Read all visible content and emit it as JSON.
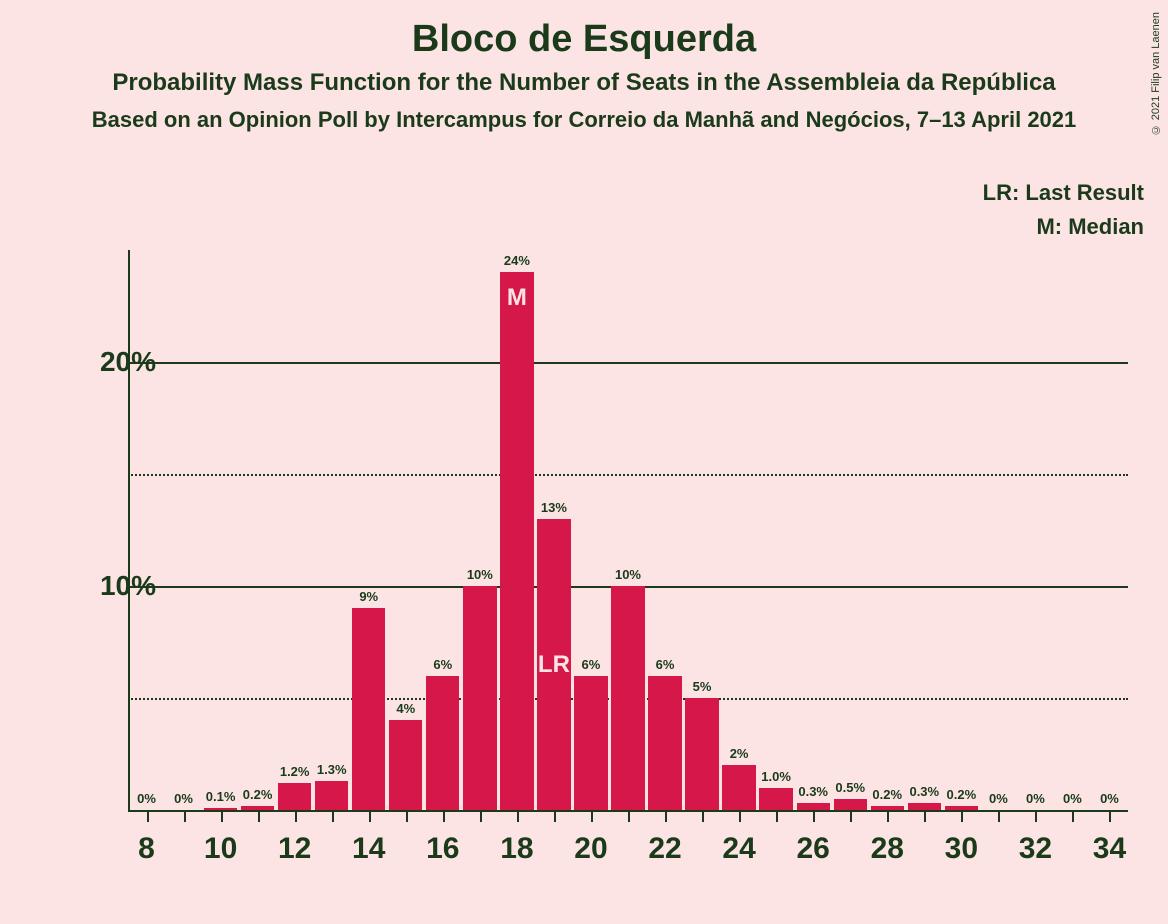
{
  "copyright": "© 2021 Filip van Laenen",
  "title": "Bloco de Esquerda",
  "subtitle": "Probability Mass Function for the Number of Seats in the Assembleia da República",
  "source": "Based on an Opinion Poll by Intercampus for Correio da Manhã and Negócios, 7–13 April 2021",
  "legend": {
    "lr": "LR: Last Result",
    "m": "M: Median"
  },
  "chart": {
    "type": "bar",
    "y_axis": {
      "major_ticks": [
        10,
        20
      ],
      "minor_ticks": [
        5,
        15
      ],
      "max": 25
    },
    "x_axis": {
      "start": 8,
      "end": 34,
      "tick_step": 2
    },
    "bar_color": "#d6174a",
    "background_color": "#fce4e4",
    "text_color": "#1a3a1a",
    "series": [
      {
        "x": 8,
        "value": 0,
        "label": "0%"
      },
      {
        "x": 9,
        "value": 0,
        "label": "0%"
      },
      {
        "x": 10,
        "value": 0.1,
        "label": "0.1%"
      },
      {
        "x": 11,
        "value": 0.2,
        "label": "0.2%"
      },
      {
        "x": 12,
        "value": 1.2,
        "label": "1.2%"
      },
      {
        "x": 13,
        "value": 1.3,
        "label": "1.3%"
      },
      {
        "x": 14,
        "value": 9,
        "label": "9%"
      },
      {
        "x": 15,
        "value": 4,
        "label": "4%"
      },
      {
        "x": 16,
        "value": 6,
        "label": "6%"
      },
      {
        "x": 17,
        "value": 10,
        "label": "10%"
      },
      {
        "x": 18,
        "value": 24,
        "label": "24%",
        "marker": "M"
      },
      {
        "x": 19,
        "value": 13,
        "label": "13%",
        "marker": "LR"
      },
      {
        "x": 20,
        "value": 6,
        "label": "6%"
      },
      {
        "x": 21,
        "value": 10,
        "label": "10%"
      },
      {
        "x": 22,
        "value": 6,
        "label": "6%"
      },
      {
        "x": 23,
        "value": 5,
        "label": "5%"
      },
      {
        "x": 24,
        "value": 2,
        "label": "2%"
      },
      {
        "x": 25,
        "value": 1.0,
        "label": "1.0%"
      },
      {
        "x": 26,
        "value": 0.3,
        "label": "0.3%"
      },
      {
        "x": 27,
        "value": 0.5,
        "label": "0.5%"
      },
      {
        "x": 28,
        "value": 0.2,
        "label": "0.2%"
      },
      {
        "x": 29,
        "value": 0.3,
        "label": "0.3%"
      },
      {
        "x": 30,
        "value": 0.2,
        "label": "0.2%"
      },
      {
        "x": 31,
        "value": 0,
        "label": "0%"
      },
      {
        "x": 32,
        "value": 0,
        "label": "0%"
      },
      {
        "x": 33,
        "value": 0,
        "label": "0%"
      },
      {
        "x": 34,
        "value": 0,
        "label": "0%"
      }
    ]
  }
}
